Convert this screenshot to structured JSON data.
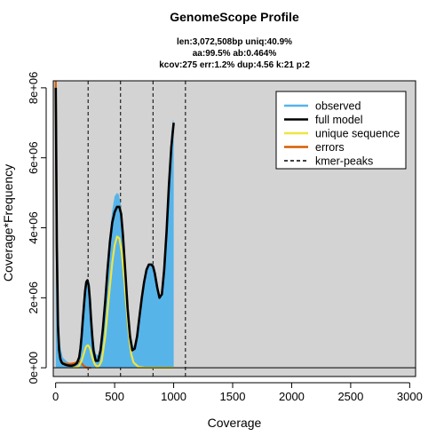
{
  "chart_data": {
    "type": "area",
    "title": "GenomeScope Profile",
    "stats": [
      "len:3,072,508bp uniq:40.9%",
      "aa:99.5% ab:0.464%",
      "kcov:275 err:1.2%  dup:4.56  k:21 p:2"
    ],
    "xlabel": "Coverage",
    "ylabel": "Coverage*Frequency",
    "xlim": [
      -20,
      3050
    ],
    "ylim": [
      -250000,
      8200000
    ],
    "x_ticks": [
      0,
      500,
      1000,
      1500,
      2000,
      2500,
      3000
    ],
    "x_tick_labels": [
      "0",
      "500",
      "1000",
      "1500",
      "2000",
      "2500",
      "3000"
    ],
    "y_ticks": [
      0,
      2000000,
      4000000,
      6000000,
      8000000
    ],
    "y_tick_labels": [
      "0e+00",
      "2e+06",
      "4e+06",
      "6e+06",
      "8e+06"
    ],
    "background": "#d3d3d3",
    "kmer_peaks": [
      275,
      550,
      825,
      1100
    ],
    "legend": {
      "position": "top-right",
      "items": [
        {
          "label": "observed",
          "color": "#56b4e9",
          "style": "solid"
        },
        {
          "label": "full model",
          "color": "#000000",
          "style": "solid"
        },
        {
          "label": "unique sequence",
          "color": "#f0e442",
          "style": "solid"
        },
        {
          "label": "errors",
          "color": "#d55e00",
          "style": "solid"
        },
        {
          "label": "kmer-peaks",
          "color": "#000000",
          "style": "dashed"
        }
      ]
    },
    "series": [
      {
        "name": "observed",
        "color": "#56b4e9",
        "x": [
          1,
          20,
          40,
          60,
          80,
          100,
          120,
          140,
          160,
          180,
          200,
          210,
          220,
          230,
          240,
          250,
          260,
          270,
          280,
          290,
          300,
          310,
          320,
          340,
          360,
          380,
          400,
          420,
          440,
          460,
          480,
          500,
          520,
          535,
          550,
          565,
          580,
          600,
          620,
          640,
          660,
          680,
          700,
          720,
          740,
          760,
          780,
          800,
          820,
          840,
          860,
          880,
          900,
          920,
          940,
          960,
          980,
          995,
          1000
        ],
        "values": [
          8000000,
          1800000,
          600000,
          300000,
          230000,
          170000,
          140000,
          120000,
          130000,
          170000,
          250000,
          400000,
          650000,
          1000000,
          1450000,
          1950000,
          2350000,
          2550000,
          2500000,
          2200000,
          1750000,
          1250000,
          850000,
          400000,
          350000,
          650000,
          1300000,
          2100000,
          3000000,
          3850000,
          4500000,
          4900000,
          5000000,
          4950000,
          4700000,
          4000000,
          3200000,
          2100000,
          1250000,
          800000,
          600000,
          700000,
          1000000,
          1500000,
          2000000,
          2450000,
          2800000,
          2950000,
          3000000,
          2850000,
          2500000,
          2100000,
          2000000,
          2600000,
          4000000,
          5600000,
          6700000,
          7100000,
          7000000
        ]
      },
      {
        "name": "full model",
        "color": "#000000",
        "x": [
          1,
          10,
          20,
          30,
          40,
          50,
          60,
          80,
          100,
          120,
          140,
          160,
          180,
          200,
          210,
          220,
          230,
          240,
          250,
          260,
          270,
          280,
          290,
          300,
          310,
          320,
          340,
          360,
          380,
          400,
          420,
          440,
          460,
          480,
          500,
          520,
          540,
          555,
          570,
          590,
          610,
          630,
          650,
          670,
          690,
          710,
          730,
          750,
          770,
          790,
          810,
          825,
          840,
          860,
          880,
          900,
          920,
          940,
          960,
          980,
          1000
        ],
        "values": [
          8000000,
          3500000,
          1200000,
          500000,
          250000,
          160000,
          120000,
          90000,
          70000,
          60000,
          60000,
          80000,
          130000,
          300000,
          550000,
          900000,
          1350000,
          1800000,
          2200000,
          2450000,
          2500000,
          2350000,
          1950000,
          1400000,
          900000,
          500000,
          200000,
          200000,
          500000,
          1100000,
          1900000,
          2800000,
          3600000,
          4150000,
          4450000,
          4600000,
          4600000,
          4400000,
          3800000,
          2750000,
          1700000,
          900000,
          500000,
          550000,
          900000,
          1450000,
          2000000,
          2450000,
          2800000,
          2950000,
          2950000,
          2900000,
          2700000,
          2300000,
          2000000,
          2100000,
          2800000,
          3900000,
          5200000,
          6300000,
          7000000
        ]
      },
      {
        "name": "unique sequence",
        "color": "#f0e442",
        "x": [
          150,
          180,
          200,
          220,
          240,
          255,
          265,
          275,
          285,
          295,
          310,
          330,
          350,
          370,
          390,
          420,
          450,
          480,
          500,
          520,
          540,
          560,
          580,
          600,
          620,
          640,
          660,
          700,
          750,
          800,
          850,
          900,
          950,
          1000
        ],
        "values": [
          0,
          20000,
          60000,
          200000,
          420000,
          580000,
          630000,
          640000,
          600000,
          500000,
          300000,
          110000,
          30000,
          60000,
          200000,
          900000,
          2000000,
          3000000,
          3500000,
          3750000,
          3700000,
          3300000,
          2600000,
          1750000,
          950000,
          400000,
          150000,
          30000,
          5000,
          0,
          0,
          0,
          0,
          0
        ]
      },
      {
        "name": "errors",
        "color": "#d55e00",
        "x": [
          1,
          10,
          20,
          30,
          40,
          50,
          60,
          80,
          100,
          120,
          140,
          160,
          180,
          200,
          220,
          240,
          260,
          280,
          300
        ],
        "values": [
          8200000,
          3200000,
          1000000,
          450000,
          250000,
          180000,
          140000,
          120000,
          110000,
          110000,
          120000,
          130000,
          160000,
          180000,
          120000,
          50000,
          10000,
          0,
          0
        ]
      }
    ]
  }
}
